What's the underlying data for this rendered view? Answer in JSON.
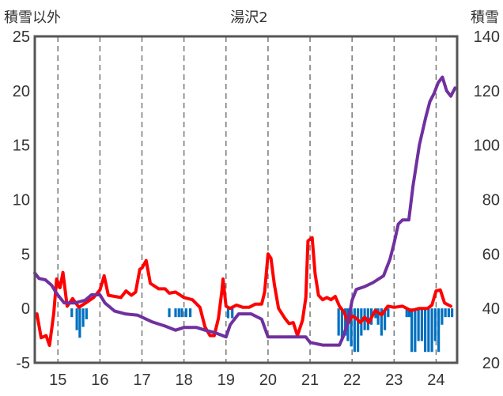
{
  "chart_data": {
    "type": "line",
    "title": "湯沢2",
    "y_left_label": "積雪以外",
    "y_right_label": "積雪",
    "y_left_ticks": [
      "25",
      "20",
      "15",
      "10",
      "5",
      "0",
      "-5"
    ],
    "y_right_ticks": [
      "140",
      "120",
      "100",
      "80",
      "60",
      "40",
      "20"
    ],
    "x_ticks": [
      "15",
      "16",
      "17",
      "18",
      "19",
      "20",
      "21",
      "22",
      "23",
      "24"
    ],
    "ylim_left": [
      -5,
      25
    ],
    "ylim_right": [
      20,
      140
    ],
    "xlim": [
      14.45,
      24.5
    ],
    "grid_x": "dashed vertical at each label",
    "series": [
      {
        "axis": "left",
        "color": "#ff0000",
        "points": [
          [
            14.5,
            -0.5
          ],
          [
            14.6,
            -2.7
          ],
          [
            14.72,
            -2.5
          ],
          [
            14.8,
            -3.4
          ],
          [
            14.9,
            -0.5
          ],
          [
            14.97,
            2.7
          ],
          [
            15.05,
            1.9
          ],
          [
            15.12,
            3.3
          ],
          [
            15.22,
            0.2
          ],
          [
            15.35,
            0.9
          ],
          [
            15.5,
            0.1
          ],
          [
            15.7,
            0.6
          ],
          [
            15.85,
            1.0
          ],
          [
            16.0,
            1.7
          ],
          [
            16.1,
            3.0
          ],
          [
            16.2,
            1.2
          ],
          [
            16.35,
            1.1
          ],
          [
            16.5,
            1.0
          ],
          [
            16.62,
            1.6
          ],
          [
            16.75,
            1.2
          ],
          [
            16.85,
            1.5
          ],
          [
            16.95,
            3.6
          ],
          [
            17.0,
            3.7
          ],
          [
            17.1,
            4.4
          ],
          [
            17.2,
            2.3
          ],
          [
            17.4,
            1.8
          ],
          [
            17.55,
            1.8
          ],
          [
            17.65,
            1.4
          ],
          [
            17.8,
            1.5
          ],
          [
            18.0,
            1.0
          ],
          [
            18.2,
            0.8
          ],
          [
            18.38,
            0.1
          ],
          [
            18.5,
            -1.7
          ],
          [
            18.62,
            -2.5
          ],
          [
            18.72,
            -2.5
          ],
          [
            18.82,
            -0.9
          ],
          [
            18.9,
            1.5
          ],
          [
            18.93,
            2.7
          ],
          [
            19.0,
            0.2
          ],
          [
            19.1,
            0.0
          ],
          [
            19.25,
            0.3
          ],
          [
            19.4,
            0.1
          ],
          [
            19.55,
            0.1
          ],
          [
            19.7,
            0.4
          ],
          [
            19.85,
            0.4
          ],
          [
            19.92,
            1.5
          ],
          [
            20.0,
            5.0
          ],
          [
            20.07,
            4.6
          ],
          [
            20.15,
            2.2
          ],
          [
            20.25,
            0.0
          ],
          [
            20.4,
            -0.9
          ],
          [
            20.5,
            -1.4
          ],
          [
            20.6,
            -1.3
          ],
          [
            20.7,
            -2.5
          ],
          [
            20.82,
            -1.1
          ],
          [
            20.9,
            1.0
          ],
          [
            20.95,
            6.2
          ],
          [
            21.05,
            6.5
          ],
          [
            21.12,
            3.2
          ],
          [
            21.2,
            1.2
          ],
          [
            21.3,
            0.8
          ],
          [
            21.4,
            1.0
          ],
          [
            21.5,
            0.8
          ],
          [
            21.6,
            1.1
          ],
          [
            21.7,
            0.2
          ],
          [
            21.82,
            -0.4
          ],
          [
            21.9,
            -1.4
          ],
          [
            22.0,
            -0.7
          ],
          [
            22.1,
            -0.9
          ],
          [
            22.2,
            -1.3
          ],
          [
            22.3,
            -0.8
          ],
          [
            22.4,
            -1.3
          ],
          [
            22.55,
            -0.2
          ],
          [
            22.7,
            -0.6
          ],
          [
            22.85,
            0.2
          ],
          [
            23.0,
            0.1
          ],
          [
            23.2,
            0.2
          ],
          [
            23.4,
            -0.2
          ],
          [
            23.6,
            0.0
          ],
          [
            23.8,
            0.0
          ],
          [
            23.9,
            0.3
          ],
          [
            24.0,
            1.6
          ],
          [
            24.1,
            1.7
          ],
          [
            24.2,
            0.5
          ],
          [
            24.35,
            0.2
          ]
        ]
      },
      {
        "axis": "right",
        "color": "#7030a0",
        "points": [
          [
            14.45,
            53.0
          ],
          [
            14.55,
            51.0
          ],
          [
            14.7,
            50.5
          ],
          [
            14.85,
            48.5
          ],
          [
            14.97,
            45.5
          ],
          [
            15.15,
            42.0
          ],
          [
            15.4,
            42.0
          ],
          [
            15.65,
            43.0
          ],
          [
            15.8,
            45.0
          ],
          [
            16.0,
            45.0
          ],
          [
            16.12,
            42.0
          ],
          [
            16.35,
            39.0
          ],
          [
            16.6,
            38.0
          ],
          [
            16.9,
            37.5
          ],
          [
            17.25,
            35.0
          ],
          [
            17.55,
            33.5
          ],
          [
            17.8,
            32.0
          ],
          [
            18.0,
            33.0
          ],
          [
            18.3,
            33.0
          ],
          [
            18.5,
            32.0
          ],
          [
            18.75,
            31.0
          ],
          [
            19.0,
            29.5
          ],
          [
            19.1,
            34.0
          ],
          [
            19.3,
            38.0
          ],
          [
            19.6,
            38.0
          ],
          [
            19.85,
            36.0
          ],
          [
            20.0,
            29.5
          ],
          [
            20.35,
            29.5
          ],
          [
            20.6,
            29.5
          ],
          [
            20.9,
            29.5
          ],
          [
            21.0,
            27.5
          ],
          [
            21.3,
            26.5
          ],
          [
            21.55,
            26.5
          ],
          [
            21.7,
            26.5
          ],
          [
            21.8,
            30.0
          ],
          [
            21.9,
            35.0
          ],
          [
            22.0,
            43.0
          ],
          [
            22.1,
            47.0
          ],
          [
            22.3,
            48.0
          ],
          [
            22.5,
            49.5
          ],
          [
            22.75,
            52.0
          ],
          [
            22.9,
            58.0
          ],
          [
            23.0,
            64.0
          ],
          [
            23.1,
            71.0
          ],
          [
            23.2,
            72.5
          ],
          [
            23.35,
            72.5
          ],
          [
            23.45,
            85.0
          ],
          [
            23.6,
            100.0
          ],
          [
            23.75,
            110.0
          ],
          [
            23.85,
            116.0
          ],
          [
            23.95,
            119.0
          ],
          [
            24.05,
            123.0
          ],
          [
            24.15,
            125.0
          ],
          [
            24.25,
            120.0
          ],
          [
            24.35,
            118.0
          ],
          [
            24.45,
            121.0
          ]
        ]
      }
    ],
    "bars": {
      "axis": "left",
      "color": "#0070c0",
      "width": 0.06,
      "values": [
        [
          15.33,
          -0.8
        ],
        [
          15.45,
          -2.0
        ],
        [
          15.52,
          -2.7
        ],
        [
          15.6,
          -1.7
        ],
        [
          15.68,
          -1.0
        ],
        [
          17.65,
          -0.8
        ],
        [
          17.8,
          -0.8
        ],
        [
          17.88,
          -0.8
        ],
        [
          17.95,
          -0.8
        ],
        [
          18.05,
          -0.8
        ],
        [
          18.15,
          -0.8
        ],
        [
          19.05,
          -0.9
        ],
        [
          19.15,
          -0.9
        ],
        [
          21.68,
          -2.5
        ],
        [
          21.76,
          -3.0
        ],
        [
          21.84,
          -2.5
        ],
        [
          21.9,
          -3.0
        ],
        [
          21.98,
          -3.5
        ],
        [
          22.06,
          -4.0
        ],
        [
          22.14,
          -4.0
        ],
        [
          22.22,
          -2.5
        ],
        [
          22.3,
          -2.0
        ],
        [
          22.38,
          -2.0
        ],
        [
          22.46,
          -1.5
        ],
        [
          22.56,
          -0.9
        ],
        [
          22.62,
          -1.5
        ],
        [
          22.7,
          -2.5
        ],
        [
          22.78,
          -2.0
        ],
        [
          22.86,
          -0.8
        ],
        [
          23.3,
          -0.8
        ],
        [
          23.36,
          -0.8
        ],
        [
          23.42,
          -4.0
        ],
        [
          23.5,
          -4.0
        ],
        [
          23.58,
          -3.0
        ],
        [
          23.66,
          -3.0
        ],
        [
          23.74,
          -4.0
        ],
        [
          23.82,
          -4.0
        ],
        [
          23.9,
          -4.0
        ],
        [
          23.98,
          -3.0
        ],
        [
          24.06,
          -4.0
        ],
        [
          24.14,
          -1.5
        ],
        [
          24.22,
          -0.8
        ],
        [
          24.3,
          -0.8
        ],
        [
          24.38,
          -0.8
        ]
      ]
    }
  }
}
